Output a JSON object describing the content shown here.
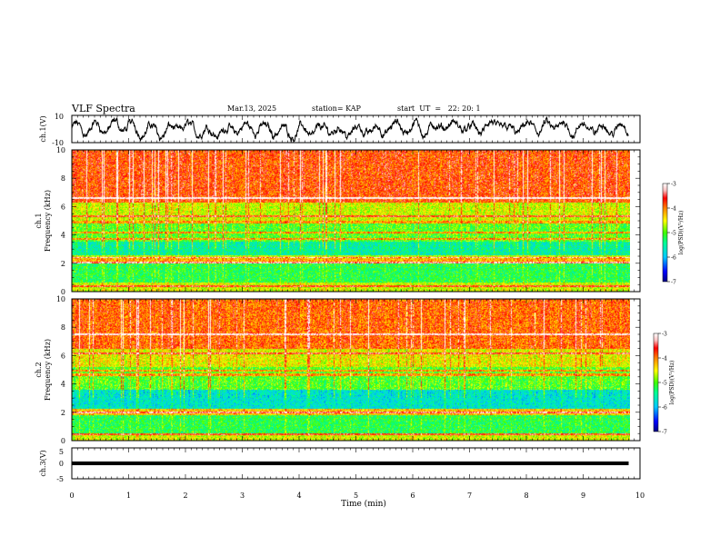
{
  "header": {
    "title": "VLF Spectra",
    "date": "Mar.13, 2025",
    "station": "station= KAP",
    "start_time": "start  UT  =   22: 20: 1"
  },
  "chart_data": [
    {
      "type": "line",
      "panel": "ch1-waveform",
      "ylabel": "ch.1(V)",
      "ylim": [
        -10,
        10
      ],
      "yticks": [
        "10",
        "-10"
      ],
      "xlim": [
        0,
        10
      ],
      "color": "#000000",
      "trace_points": 1600
    },
    {
      "type": "heatmap",
      "panel": "ch1-spectrogram",
      "ylabel_line1": "ch.1",
      "ylabel_line2": "Frequency (kHz)",
      "ylim": [
        0,
        10
      ],
      "yticks": [
        "0",
        "2",
        "4",
        "6",
        "8",
        "10"
      ],
      "xlim": [
        0,
        9.8
      ],
      "bands": [
        {
          "from": 0.0,
          "to": 0.6,
          "level": -4.6
        },
        {
          "from": 0.6,
          "to": 2.0,
          "level": -5.2
        },
        {
          "from": 2.0,
          "to": 2.4,
          "level": -4.2
        },
        {
          "from": 2.4,
          "to": 3.5,
          "level": -5.5
        },
        {
          "from": 3.5,
          "to": 5.0,
          "level": -5.0
        },
        {
          "from": 5.0,
          "to": 6.3,
          "level": -4.6
        },
        {
          "from": 6.3,
          "to": 10.0,
          "level": -3.8
        }
      ],
      "lines_khz": [
        0.35,
        2.05,
        2.45,
        3.7,
        4.15,
        4.9,
        5.3,
        6.6
      ],
      "colorbar": {
        "label": "log(PSD)(V²/Hz)",
        "range": [
          -7,
          -3
        ],
        "ticks": [
          "-3",
          "-4",
          "-5",
          "-6",
          "-7"
        ]
      }
    },
    {
      "type": "heatmap",
      "panel": "ch2-spectrogram",
      "ylabel_line1": "ch.2",
      "ylabel_line2": "Frequency (kHz)",
      "ylim": [
        0,
        10
      ],
      "yticks": [
        "0",
        "2",
        "4",
        "6",
        "8",
        "10"
      ],
      "xlim": [
        0,
        9.8
      ],
      "bands": [
        {
          "from": 0.0,
          "to": 0.5,
          "level": -4.6
        },
        {
          "from": 0.5,
          "to": 1.8,
          "level": -5.2
        },
        {
          "from": 1.8,
          "to": 2.2,
          "level": -4.3
        },
        {
          "from": 2.2,
          "to": 3.6,
          "level": -5.7
        },
        {
          "from": 3.6,
          "to": 5.2,
          "level": -5.0
        },
        {
          "from": 5.2,
          "to": 6.5,
          "level": -4.5
        },
        {
          "from": 6.5,
          "to": 10.0,
          "level": -3.9
        }
      ],
      "lines_khz": [
        0.4,
        1.95,
        4.65,
        4.95,
        6.15,
        7.5
      ],
      "colorbar": {
        "label": "log(PSD)(V²/Hz)",
        "range": [
          -7,
          -3
        ],
        "ticks": [
          "-3",
          "-4",
          "-5",
          "-6",
          "-7"
        ]
      }
    },
    {
      "type": "line",
      "panel": "ch3-waveform",
      "ylabel": "ch.3(V)",
      "ylim": [
        -5,
        5
      ],
      "yticks": [
        "5",
        "0",
        "-5"
      ],
      "xlim": [
        0,
        10
      ],
      "band": [
        -0.6,
        0.6
      ],
      "color": "#000000"
    }
  ],
  "xaxis": {
    "label": "Time (min)",
    "range": [
      0,
      10
    ],
    "ticks": [
      "0",
      "1",
      "2",
      "3",
      "4",
      "5",
      "6",
      "7",
      "8",
      "9",
      "10"
    ]
  },
  "colors": {
    "trace": "#000000",
    "colormap": [
      "#000080",
      "#0000ff",
      "#00c8ff",
      "#00ff90",
      "#40ff00",
      "#ffff00",
      "#ff8000",
      "#ff0000",
      "#ffc0c0",
      "#ffffff"
    ]
  }
}
